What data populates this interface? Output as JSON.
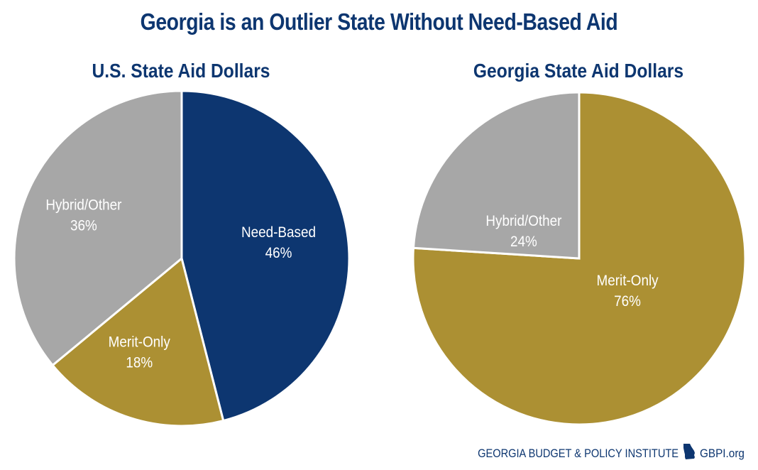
{
  "colors": {
    "navy": "#0d3670",
    "gold": "#ac9033",
    "gray": "#a7a7a7",
    "title": "#0d3670"
  },
  "chart_data": {
    "title": "Georgia is an Outlier State Without Need-Based Aid",
    "charts": [
      {
        "type": "pie",
        "title": "U.S. State Aid Dollars",
        "slices": [
          {
            "label": "Need-Based",
            "value": 46,
            "display": "46%",
            "color": "#0d3670"
          },
          {
            "label": "Merit-Only",
            "value": 18,
            "display": "18%",
            "color": "#ac9033"
          },
          {
            "label": "Hybrid/Other",
            "value": 36,
            "display": "36%",
            "color": "#a7a7a7"
          }
        ]
      },
      {
        "type": "pie",
        "title": "Georgia State Aid Dollars",
        "slices": [
          {
            "label": "Merit-Only",
            "value": 76,
            "display": "76%",
            "color": "#ac9033"
          },
          {
            "label": "Hybrid/Other",
            "value": 24,
            "display": "24%",
            "color": "#a7a7a7"
          }
        ]
      }
    ]
  },
  "footer": {
    "org": "GEORGIA BUDGET & POLICY INSTITUTE",
    "icon": "georgia-state-icon",
    "site": "GBPI.org"
  }
}
